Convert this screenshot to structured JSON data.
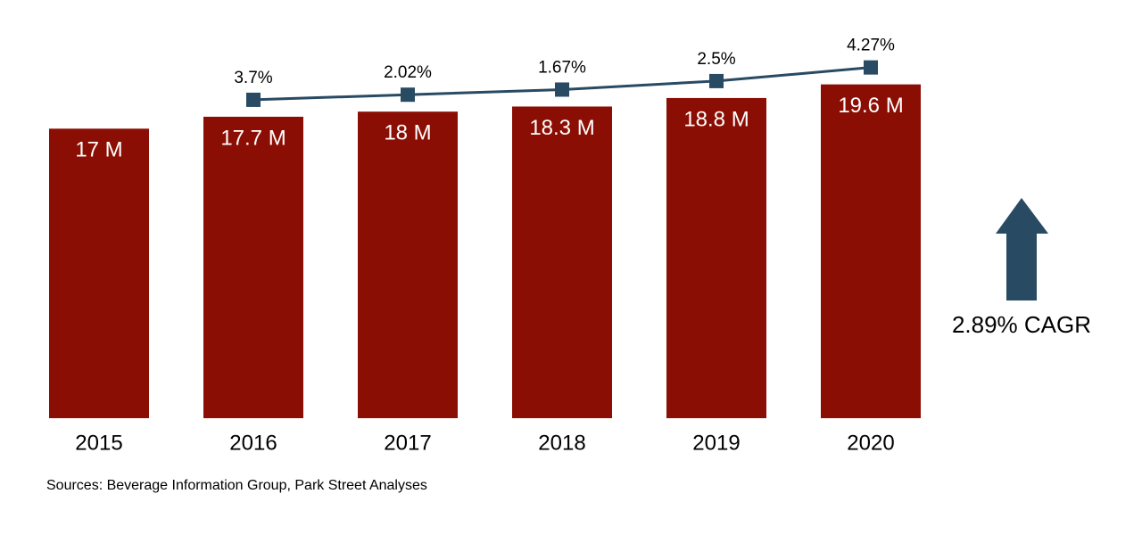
{
  "chart_data": {
    "type": "bar",
    "categories": [
      "2015",
      "2016",
      "2017",
      "2018",
      "2019",
      "2020"
    ],
    "ylim": [
      0,
      20
    ],
    "series": [
      {
        "type": "bar",
        "color": "#8b0e04",
        "values": [
          17,
          17.7,
          18,
          18.3,
          18.8,
          19.6
        ],
        "value_labels": [
          "17 M",
          "17.7 M",
          "18 M",
          "18.3 M",
          "18.8 M",
          "19.6 M"
        ]
      },
      {
        "type": "line",
        "color": "#284a63",
        "values": [
          null,
          3.7,
          2.02,
          1.67,
          2.5,
          4.27
        ],
        "value_labels": [
          null,
          "3.7%",
          "2.02%",
          "1.67%",
          "2.5%",
          "4.27%"
        ]
      }
    ],
    "annotations": [
      "2.89% CAGR"
    ],
    "source": "Sources: Beverage Information Group, Park Street Analyses"
  }
}
